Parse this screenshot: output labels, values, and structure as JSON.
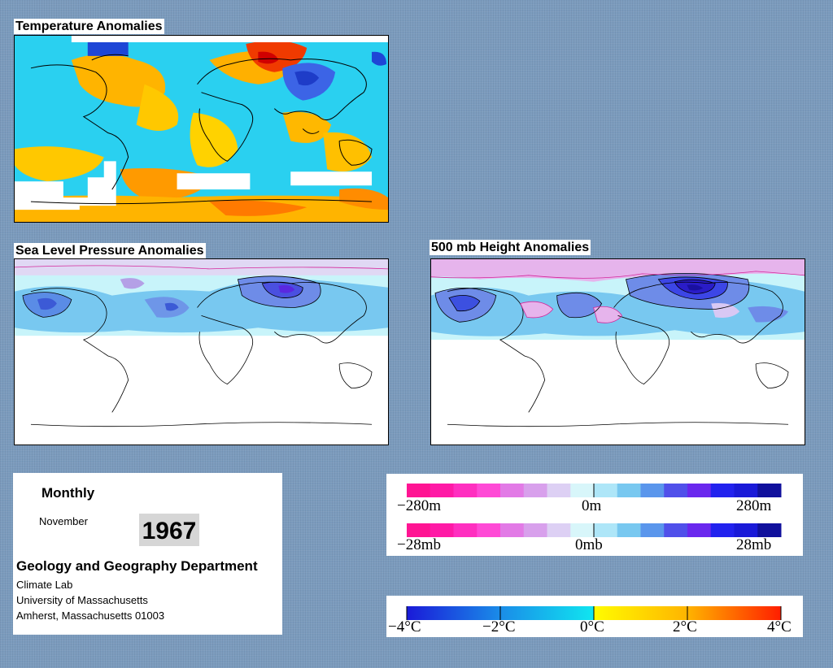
{
  "panels": {
    "temperature_title": "Temperature Anomalies",
    "slp_title": "Sea Level Pressure Anomalies",
    "height_title": "500 mb Height Anomalies"
  },
  "info": {
    "period": "Monthly",
    "month": "November",
    "year": "1967",
    "department": "Geology and Geography Department",
    "lab": "Climate Lab",
    "university": "University of Massachusetts",
    "address": "Amherst, Massachusetts 01003"
  },
  "legends": {
    "height": {
      "min": "−280m",
      "mid": "0m",
      "max": "280m"
    },
    "pressure": {
      "min": "−28mb",
      "mid": "0mb",
      "max": "28mb"
    },
    "temperature": {
      "t1": "−4°C",
      "t2": "−2°C",
      "t3": "0°C",
      "t4": "2°C",
      "t5": "4°C"
    }
  },
  "colors": {
    "background": "#7b9bbd",
    "warm": "#ffd400",
    "hot": "#ff6a00",
    "cold": "#2ad0f0",
    "deep_cold": "#1e46d6",
    "pos_height": "#3c46e6",
    "neg_height": "#e67ad8"
  }
}
